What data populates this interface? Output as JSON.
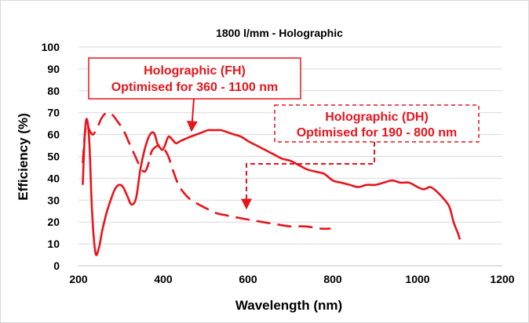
{
  "chart_data": {
    "type": "line",
    "title": "1800 l/mm - Holographic",
    "xlabel": "Wavelength (nm)",
    "ylabel": "Efficiency (%)",
    "xlim": [
      200,
      1200
    ],
    "ylim": [
      0,
      100
    ],
    "xticks": [
      "200",
      "400",
      "600",
      "800",
      "1000",
      "1200"
    ],
    "yticks": [
      "0",
      "10",
      "20",
      "30",
      "40",
      "50",
      "60",
      "70",
      "80",
      "90",
      "100"
    ],
    "grid": "horizontal",
    "series": [
      {
        "label": "FH",
        "style": "solid",
        "color": "#e8141b",
        "x": [
          210,
          215,
          220,
          226,
          232,
          240,
          248,
          256,
          266,
          276,
          286,
          296,
          305,
          315,
          325,
          336,
          346,
          356,
          366,
          374,
          380,
          386,
          392,
          398,
          404,
          412,
          420,
          430,
          440,
          452,
          464,
          478,
          492,
          506,
          520,
          536,
          552,
          568,
          584,
          600,
          620,
          640,
          660,
          680,
          700,
          720,
          740,
          760,
          780,
          800,
          820,
          840,
          860,
          880,
          900,
          920,
          940,
          960,
          980,
          1000,
          1015,
          1030,
          1045,
          1060,
          1075,
          1085,
          1095,
          1100
        ],
        "y": [
          37,
          60,
          67,
          55,
          25,
          6,
          8,
          16,
          24,
          30,
          35,
          37,
          36,
          32,
          28,
          31,
          44,
          53,
          59,
          61,
          60,
          56,
          54,
          53,
          55,
          59,
          58,
          56,
          57,
          58,
          59,
          60,
          61,
          62,
          62,
          62,
          61,
          60,
          59,
          57,
          55,
          53,
          51,
          49,
          48,
          46,
          44,
          43,
          42,
          39,
          38,
          37,
          36,
          37,
          37,
          38,
          39,
          38,
          38,
          36,
          35,
          36,
          34,
          31,
          27,
          20,
          15,
          12
        ]
      },
      {
        "label": "DH",
        "style": "dashed",
        "color": "#e8141b",
        "x": [
          210,
          215,
          220,
          226,
          234,
          244,
          256,
          268,
          280,
          292,
          306,
          320,
          334,
          346,
          356,
          364,
          372,
          380,
          390,
          400,
          412,
          424,
          436,
          450,
          466,
          484,
          504,
          526,
          550,
          576,
          604,
          634,
          666,
          700,
          736,
          770,
          795
        ],
        "y": [
          47,
          60,
          65,
          62,
          60,
          63,
          68,
          70,
          69,
          66,
          62,
          56,
          50,
          45,
          43,
          46,
          52,
          54,
          55,
          54,
          50,
          43,
          37,
          33,
          30,
          28,
          26,
          24,
          23,
          22,
          21,
          20,
          19,
          18,
          18,
          17,
          17
        ]
      }
    ],
    "annotations": [
      {
        "series": "FH",
        "lines": [
          "Holographic (FH)",
          "Optimised for 360 - 1100 nm"
        ],
        "border": "solid"
      },
      {
        "series": "DH",
        "lines": [
          "Holographic (DH)",
          "Optimised for 190 - 800 nm"
        ],
        "border": "dashed"
      }
    ]
  }
}
